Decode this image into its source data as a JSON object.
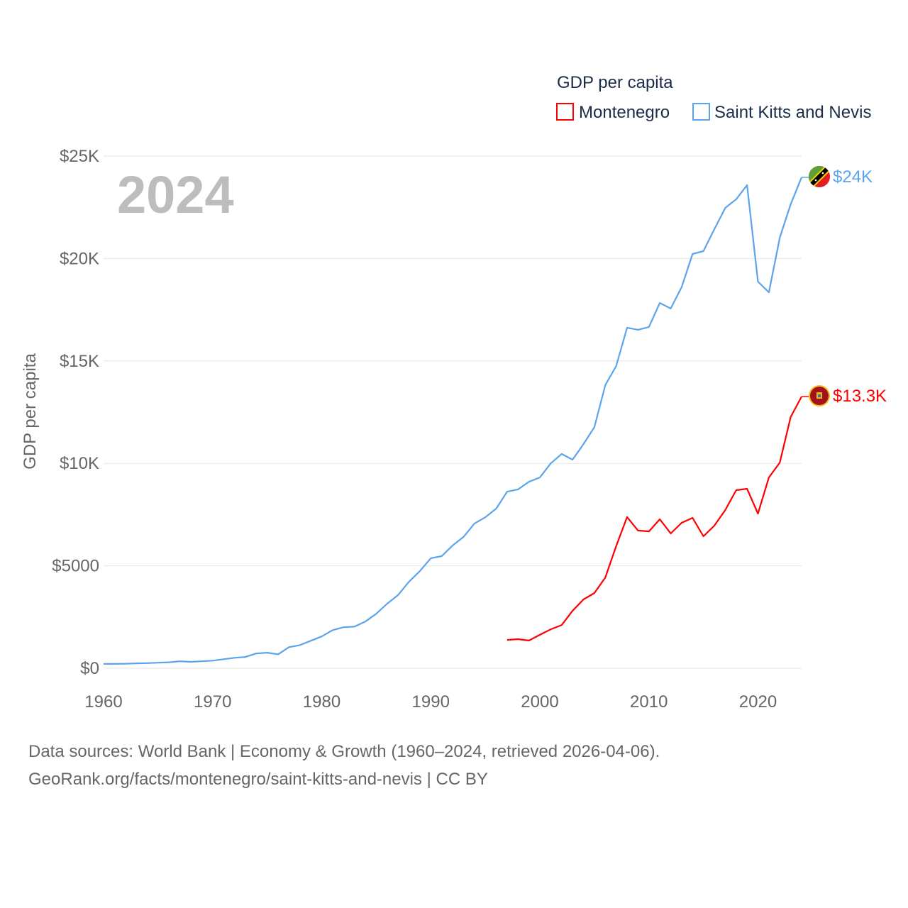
{
  "chart_data": {
    "type": "line",
    "title": "2024",
    "ylabel": "GDP per capita",
    "xlabel": "",
    "xlim": [
      1960,
      2024
    ],
    "ylim": [
      0,
      25000
    ],
    "grid": true,
    "legend": {
      "title": "GDP per capita",
      "placement": "top-right"
    },
    "y_ticks": [
      {
        "v": 0,
        "label": "$0"
      },
      {
        "v": 5000,
        "label": "$5000"
      },
      {
        "v": 10000,
        "label": "$10K"
      },
      {
        "v": 15000,
        "label": "$15K"
      },
      {
        "v": 20000,
        "label": "$20K"
      },
      {
        "v": 25000,
        "label": "$25K"
      }
    ],
    "x_ticks": [
      {
        "v": 1960,
        "label": "1960"
      },
      {
        "v": 1970,
        "label": "1970"
      },
      {
        "v": 1980,
        "label": "1980"
      },
      {
        "v": 1990,
        "label": "1990"
      },
      {
        "v": 2000,
        "label": "2000"
      },
      {
        "v": 2010,
        "label": "2010"
      },
      {
        "v": 2020,
        "label": "2020"
      }
    ],
    "series": [
      {
        "name": "Montenegro",
        "color": "#ff0000",
        "end_label": "$13.3K",
        "flag": "montenegro-flag",
        "start": 1997,
        "values": [
          1380,
          1420,
          1350,
          1630,
          1900,
          2110,
          2800,
          3360,
          3670,
          4430,
          5960,
          7380,
          6720,
          6680,
          7270,
          6580,
          7100,
          7340,
          6440,
          6960,
          7720,
          8690,
          8760,
          7550,
          9310,
          10040,
          12260,
          13260
        ]
      },
      {
        "name": "Saint Kitts and Nevis",
        "color": "#5ba4ec",
        "end_label": "$24K",
        "flag": "saint-kitts-and-nevis-flag",
        "start": 1960,
        "values": [
          210,
          210,
          220,
          240,
          250,
          270,
          290,
          340,
          310,
          340,
          370,
          440,
          510,
          550,
          720,
          760,
          680,
          1030,
          1130,
          1340,
          1550,
          1860,
          2000,
          2030,
          2280,
          2660,
          3150,
          3570,
          4220,
          4740,
          5370,
          5470,
          5990,
          6410,
          7060,
          7370,
          7790,
          8620,
          8730,
          9100,
          9310,
          10000,
          10460,
          10180,
          10940,
          11770,
          13820,
          14750,
          16620,
          16520,
          16660,
          17830,
          17560,
          18600,
          20220,
          20360,
          21430,
          22470,
          22890,
          23580,
          18870,
          18350,
          21020,
          22650,
          23960
        ]
      }
    ]
  },
  "footer": {
    "sources": "Data sources: World Bank | Economy & Growth (1960–2024, retrieved 2026-04-06).",
    "link": "GeoRank.org/facts/montenegro/saint-kitts-and-nevis | CC BY"
  }
}
